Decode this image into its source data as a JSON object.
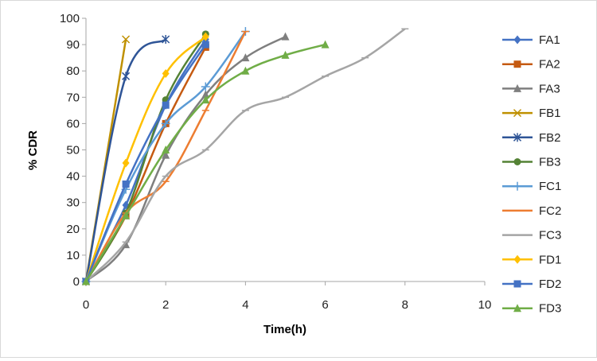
{
  "chart_data": {
    "type": "line",
    "title": "",
    "xlabel": "Time(h)",
    "ylabel": "% CDR",
    "xlim": [
      0,
      10
    ],
    "ylim": [
      0,
      100
    ],
    "xticks": [
      0,
      2,
      4,
      6,
      8,
      10
    ],
    "yticks": [
      0,
      10,
      20,
      30,
      40,
      50,
      60,
      70,
      80,
      90,
      100
    ],
    "grid": false,
    "legend_position": "right",
    "series": [
      {
        "name": "FA1",
        "color": "#4472c4",
        "marker": "diamond",
        "x": [
          0,
          1,
          2,
          3
        ],
        "y": [
          0,
          29,
          67,
          92
        ]
      },
      {
        "name": "FA2",
        "color": "#c55a11",
        "marker": "square",
        "x": [
          0,
          1,
          2,
          3
        ],
        "y": [
          0,
          25,
          60,
          89
        ]
      },
      {
        "name": "FA3",
        "color": "#7f7f7f",
        "marker": "triangle",
        "x": [
          0,
          1,
          2,
          3,
          4,
          5
        ],
        "y": [
          0,
          14,
          48,
          71,
          85,
          93
        ]
      },
      {
        "name": "FB1",
        "color": "#bf9000",
        "marker": "x",
        "x": [
          0,
          1
        ],
        "y": [
          0,
          92
        ]
      },
      {
        "name": "FB2",
        "color": "#2f5597",
        "marker": "star",
        "x": [
          0,
          1,
          2
        ],
        "y": [
          0,
          78,
          92
        ]
      },
      {
        "name": "FB3",
        "color": "#548235",
        "marker": "circle",
        "x": [
          0,
          1,
          2,
          3
        ],
        "y": [
          0,
          26,
          69,
          94
        ]
      },
      {
        "name": "FC1",
        "color": "#5b9bd5",
        "marker": "plus",
        "x": [
          0,
          1,
          2,
          3,
          4
        ],
        "y": [
          0,
          35,
          60,
          74,
          95
        ]
      },
      {
        "name": "FC2",
        "color": "#ed7d31",
        "marker": "dash",
        "x": [
          0,
          1,
          2,
          3,
          4
        ],
        "y": [
          0,
          26,
          38,
          65,
          95
        ]
      },
      {
        "name": "FC3",
        "color": "#a5a5a5",
        "marker": "dash",
        "x": [
          0,
          1,
          2,
          3,
          4,
          5,
          6,
          7,
          8
        ],
        "y": [
          0,
          15,
          40,
          50,
          65,
          70,
          78,
          85,
          96
        ]
      },
      {
        "name": "FD1",
        "color": "#ffc000",
        "marker": "diamond",
        "x": [
          0,
          1,
          2,
          3
        ],
        "y": [
          0,
          45,
          79,
          93
        ]
      },
      {
        "name": "FD2",
        "color": "#4472c4",
        "marker": "square",
        "x": [
          0,
          1,
          2,
          3
        ],
        "y": [
          0,
          37,
          67,
          90
        ]
      },
      {
        "name": "FD3",
        "color": "#70ad47",
        "marker": "triangle",
        "x": [
          0,
          1,
          2,
          3,
          4,
          5,
          6
        ],
        "y": [
          0,
          25,
          50,
          69,
          80,
          86,
          90
        ]
      }
    ]
  }
}
